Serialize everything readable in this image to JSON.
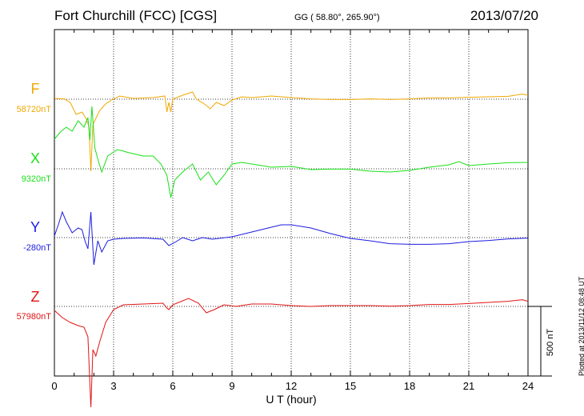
{
  "header": {
    "station": "Fort Churchill (FCC)  [CGS]",
    "coordinates": "GG ( 58.80°, 265.90°)",
    "date": "2013/07/20"
  },
  "plotted_note": "Plotted at 2013/11/12 08:48 UT",
  "chart_data": {
    "type": "line",
    "xlabel": "U T (hour)",
    "xlim": [
      0,
      24
    ],
    "x_ticks": [
      0,
      3,
      6,
      9,
      12,
      15,
      18,
      21,
      24
    ],
    "grid": true,
    "scale_bar": {
      "label": "500 nT",
      "value": 500,
      "unit": "nT"
    },
    "series": [
      {
        "name": "F",
        "baseline_label": "58720nT",
        "baseline": 58720,
        "color": "#f0a800",
        "points": [
          [
            0,
            58725
          ],
          [
            0.5,
            58722
          ],
          [
            0.8,
            58700
          ],
          [
            1.1,
            58625
          ],
          [
            1.4,
            58640
          ],
          [
            1.6,
            58600
          ],
          [
            1.75,
            58550
          ],
          [
            1.85,
            58270
          ],
          [
            1.95,
            58560
          ],
          [
            2.1,
            58600
          ],
          [
            2.3,
            58650
          ],
          [
            2.6,
            58690
          ],
          [
            2.9,
            58715
          ],
          [
            3.3,
            58740
          ],
          [
            4,
            58725
          ],
          [
            5,
            58730
          ],
          [
            5.6,
            58740
          ],
          [
            5.7,
            58640
          ],
          [
            5.8,
            58700
          ],
          [
            5.9,
            58640
          ],
          [
            6,
            58720
          ],
          [
            6.5,
            58745
          ],
          [
            7,
            58765
          ],
          [
            7.2,
            58720
          ],
          [
            7.6,
            58690
          ],
          [
            7.9,
            58660
          ],
          [
            8.2,
            58700
          ],
          [
            8.6,
            58680
          ],
          [
            9,
            58715
          ],
          [
            9.5,
            58735
          ],
          [
            10,
            58730
          ],
          [
            11,
            58740
          ],
          [
            12,
            58730
          ],
          [
            13,
            58722
          ],
          [
            14,
            58718
          ],
          [
            15,
            58718
          ],
          [
            16,
            58722
          ],
          [
            17,
            58718
          ],
          [
            18,
            58722
          ],
          [
            19,
            58728
          ],
          [
            20,
            58728
          ],
          [
            21,
            58732
          ],
          [
            22,
            58735
          ],
          [
            23,
            58738
          ],
          [
            23.7,
            58752
          ],
          [
            24,
            58745
          ]
        ]
      },
      {
        "name": "X",
        "baseline_label": "9320nT",
        "baseline": 9320,
        "color": "#18e018",
        "points": [
          [
            0,
            9505
          ],
          [
            0.3,
            9550
          ],
          [
            0.6,
            9580
          ],
          [
            0.9,
            9555
          ],
          [
            1.2,
            9620
          ],
          [
            1.5,
            9580
          ],
          [
            1.7,
            9640
          ],
          [
            1.8,
            9500
          ],
          [
            1.9,
            9710
          ],
          [
            2.05,
            9450
          ],
          [
            2.2,
            9380
          ],
          [
            2.4,
            9300
          ],
          [
            2.7,
            9400
          ],
          [
            3.2,
            9440
          ],
          [
            3.8,
            9420
          ],
          [
            4.5,
            9400
          ],
          [
            5,
            9400
          ],
          [
            5.4,
            9350
          ],
          [
            5.7,
            9280
          ],
          [
            5.9,
            9140
          ],
          [
            6.1,
            9250
          ],
          [
            6.5,
            9300
          ],
          [
            7,
            9350
          ],
          [
            7.4,
            9250
          ],
          [
            7.8,
            9300
          ],
          [
            8.2,
            9220
          ],
          [
            8.6,
            9280
          ],
          [
            9,
            9350
          ],
          [
            9.5,
            9360
          ],
          [
            10.5,
            9340
          ],
          [
            11,
            9330
          ],
          [
            12,
            9335
          ],
          [
            13,
            9315
          ],
          [
            14,
            9318
          ],
          [
            15,
            9318
          ],
          [
            16,
            9305
          ],
          [
            17,
            9300
          ],
          [
            18,
            9310
          ],
          [
            19,
            9330
          ],
          [
            20,
            9345
          ],
          [
            20.5,
            9365
          ],
          [
            21,
            9340
          ],
          [
            22,
            9350
          ],
          [
            23,
            9358
          ],
          [
            24,
            9360
          ]
        ]
      },
      {
        "name": "Y",
        "baseline_label": "-280nT",
        "baseline": -280,
        "color": "#1c1ce0",
        "points": [
          [
            0,
            -270
          ],
          [
            0.2,
            -200
          ],
          [
            0.4,
            -120
          ],
          [
            0.6,
            -180
          ],
          [
            0.9,
            -250
          ],
          [
            1.2,
            -220
          ],
          [
            1.4,
            -230
          ],
          [
            1.55,
            -300
          ],
          [
            1.7,
            -350
          ],
          [
            1.85,
            -120
          ],
          [
            2,
            -450
          ],
          [
            2.2,
            -300
          ],
          [
            2.4,
            -370
          ],
          [
            2.7,
            -300
          ],
          [
            3,
            -290
          ],
          [
            3.5,
            -285
          ],
          [
            4.5,
            -282
          ],
          [
            5.5,
            -290
          ],
          [
            5.8,
            -330
          ],
          [
            6.1,
            -310
          ],
          [
            6.5,
            -280
          ],
          [
            7,
            -300
          ],
          [
            7.5,
            -280
          ],
          [
            8,
            -290
          ],
          [
            9,
            -275
          ],
          [
            10,
            -245
          ],
          [
            11,
            -215
          ],
          [
            11.5,
            -200
          ],
          [
            12,
            -200
          ],
          [
            13,
            -220
          ],
          [
            14,
            -255
          ],
          [
            15,
            -285
          ],
          [
            16,
            -300
          ],
          [
            17,
            -318
          ],
          [
            18,
            -322
          ],
          [
            19,
            -322
          ],
          [
            20,
            -318
          ],
          [
            21,
            -305
          ],
          [
            22,
            -298
          ],
          [
            23,
            -288
          ],
          [
            24,
            -283
          ]
        ]
      },
      {
        "name": "Z",
        "baseline_label": "57980nT",
        "baseline": 57980,
        "color": "#e01414",
        "points": [
          [
            0,
            57955
          ],
          [
            0.4,
            57910
          ],
          [
            0.8,
            57880
          ],
          [
            1.2,
            57860
          ],
          [
            1.5,
            57850
          ],
          [
            1.7,
            57790
          ],
          [
            1.85,
            57350
          ],
          [
            1.95,
            57710
          ],
          [
            2.1,
            57670
          ],
          [
            2.3,
            57760
          ],
          [
            2.6,
            57880
          ],
          [
            3,
            57960
          ],
          [
            3.5,
            57990
          ],
          [
            4.5,
            57995
          ],
          [
            5.5,
            58000
          ],
          [
            5.7,
            57970
          ],
          [
            5.8,
            57960
          ],
          [
            6,
            57990
          ],
          [
            6.4,
            58010
          ],
          [
            6.8,
            58030
          ],
          [
            7.3,
            58000
          ],
          [
            7.7,
            57940
          ],
          [
            8.1,
            57960
          ],
          [
            8.6,
            57990
          ],
          [
            9.2,
            57980
          ],
          [
            10,
            57995
          ],
          [
            11,
            57995
          ],
          [
            12,
            57985
          ],
          [
            13,
            57980
          ],
          [
            14,
            57985
          ],
          [
            15,
            57985
          ],
          [
            16,
            57985
          ],
          [
            17,
            57982
          ],
          [
            18,
            57985
          ],
          [
            19,
            57992
          ],
          [
            20,
            57992
          ],
          [
            21,
            57998
          ],
          [
            22,
            58005
          ],
          [
            23,
            58012
          ],
          [
            23.7,
            58022
          ],
          [
            24,
            58012
          ]
        ]
      }
    ]
  }
}
